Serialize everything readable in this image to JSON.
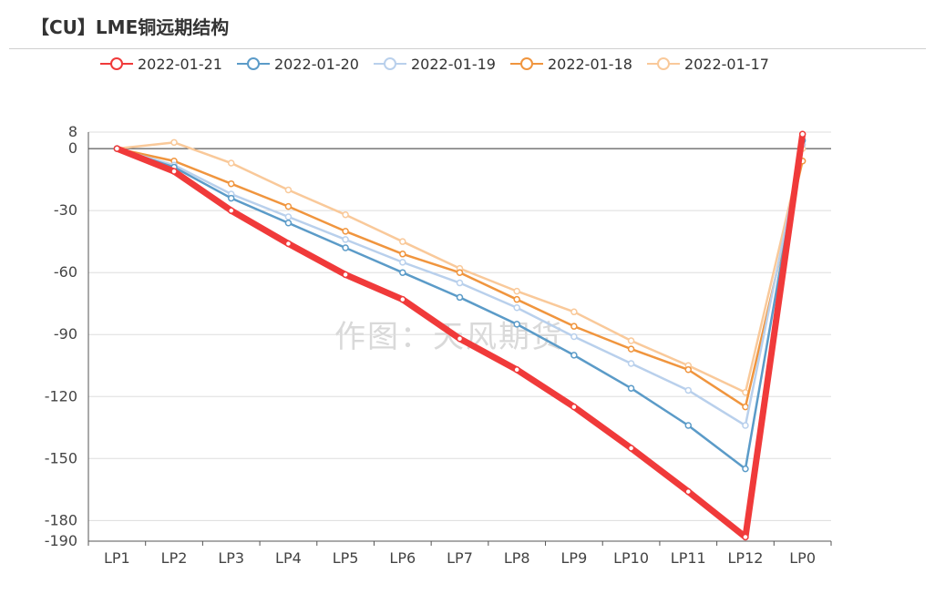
{
  "title": "【CU】LME铜远期结构",
  "watermark": "作图：天风期货",
  "chart_data": {
    "type": "line",
    "title": "【CU】LME铜远期结构",
    "categories": [
      "LP1",
      "LP2",
      "LP3",
      "LP4",
      "LP5",
      "LP6",
      "LP7",
      "LP8",
      "LP9",
      "LP10",
      "LP11",
      "LP12",
      "LP0"
    ],
    "yticks": [
      8,
      0,
      -30,
      -60,
      -90,
      -120,
      -150,
      -180,
      -190
    ],
    "ylim": [
      -190,
      8
    ],
    "xlabel": "",
    "ylabel": "",
    "legend_position": "top",
    "series": [
      {
        "name": "2022-01-21",
        "color": "#f03a3a",
        "values": [
          0,
          -11,
          -30,
          -46,
          -61,
          -73,
          -92,
          -107,
          -125,
          -145,
          -166,
          -188,
          7
        ]
      },
      {
        "name": "2022-01-20",
        "color": "#5b9bc8",
        "values": [
          0,
          -9,
          -24,
          -36,
          -48,
          -60,
          -72,
          -85,
          -100,
          -116,
          -134,
          -155,
          4
        ]
      },
      {
        "name": "2022-01-19",
        "color": "#b9d0ec",
        "values": [
          0,
          -8,
          -22,
          -33,
          -44,
          -55,
          -65,
          -77,
          -91,
          -104,
          -117,
          -134,
          2
        ]
      },
      {
        "name": "2022-01-18",
        "color": "#f0953e",
        "values": [
          0,
          -6,
          -17,
          -28,
          -40,
          -51,
          -60,
          -73,
          -86,
          -97,
          -107,
          -125,
          -6
        ]
      },
      {
        "name": "2022-01-17",
        "color": "#f9c99a",
        "values": [
          0,
          3,
          -7,
          -20,
          -32,
          -45,
          -58,
          -69,
          -79,
          -93,
          -105,
          -118,
          0
        ]
      }
    ]
  }
}
